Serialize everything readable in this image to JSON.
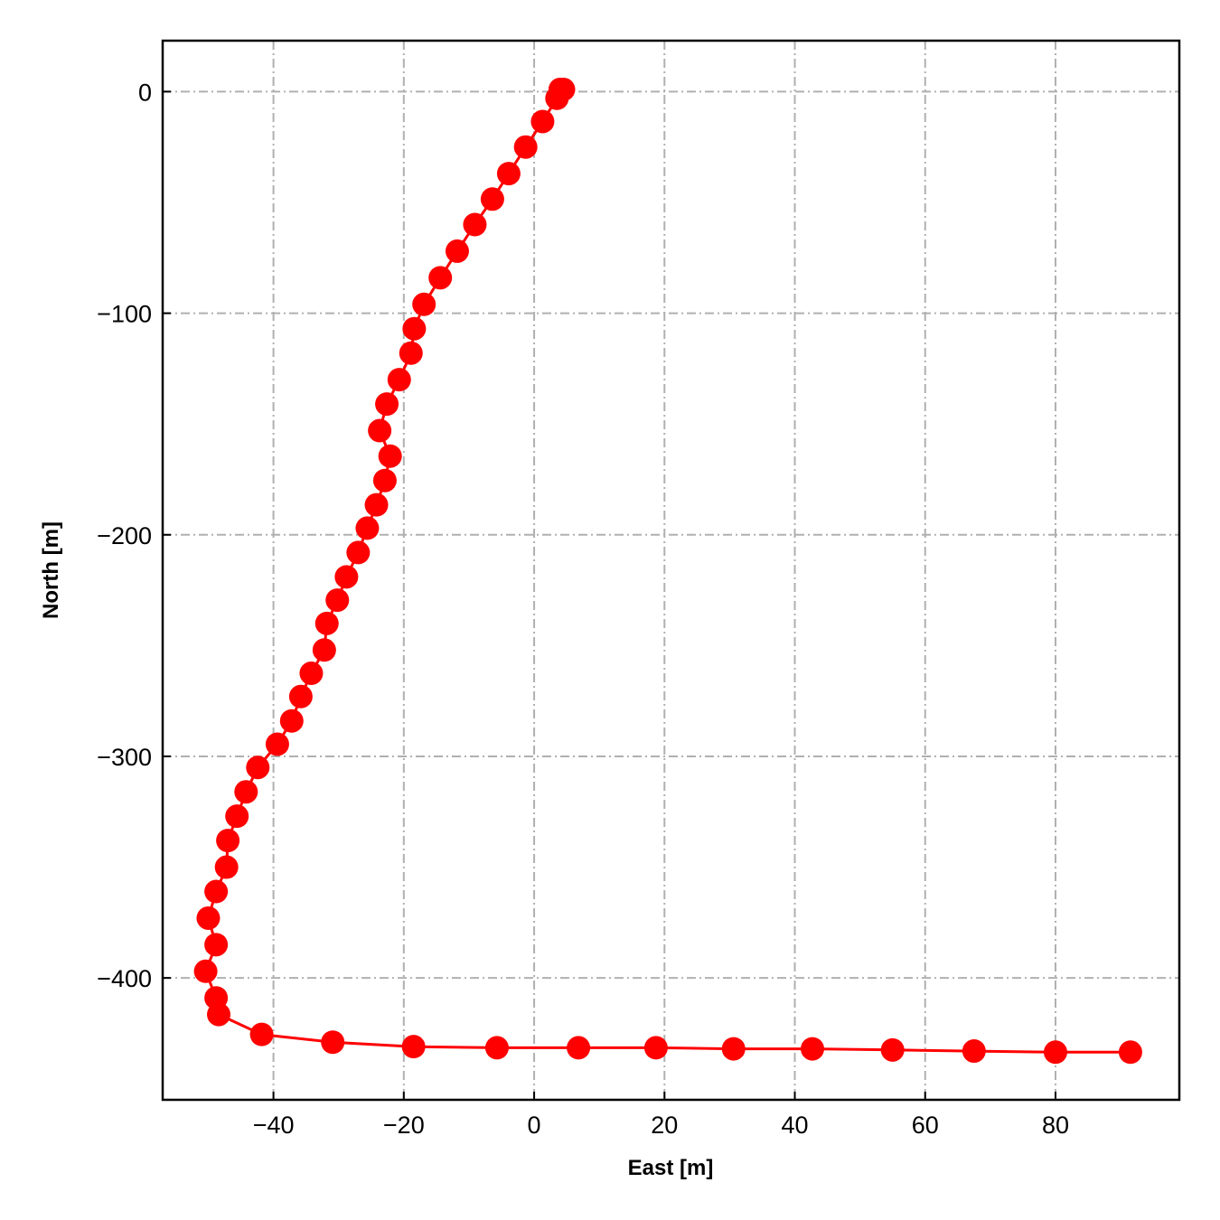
{
  "chart_data": {
    "type": "line",
    "xlabel": "East [m]",
    "ylabel": "North [m]",
    "xlim": [
      -57,
      99
    ],
    "ylim": [
      -455,
      23
    ],
    "x_ticks": [
      -40,
      -20,
      0,
      20,
      40,
      60,
      80
    ],
    "y_ticks": [
      0,
      -100,
      -200,
      -300,
      -400
    ],
    "x_tick_labels": [
      "−40",
      "−20",
      "0",
      "20",
      "40",
      "60",
      "80"
    ],
    "y_tick_labels": [
      "0",
      "−100",
      "−200",
      "−300",
      "−400"
    ],
    "grid": true,
    "grid_style": "dash-dot",
    "series": [
      {
        "color": "#ff0000",
        "marker": "circle",
        "x": [
          4.5,
          4.0,
          3.5,
          1.3,
          -1.3,
          -3.9,
          -6.4,
          -9.1,
          -11.8,
          -14.4,
          -16.9,
          -18.4,
          -18.9,
          -20.7,
          -22.6,
          -23.7,
          -22.1,
          -22.9,
          -24.2,
          -25.6,
          -27.0,
          -28.8,
          -30.2,
          -31.8,
          -32.2,
          -34.2,
          -35.8,
          -37.2,
          -39.4,
          -42.4,
          -44.2,
          -45.6,
          -47.0,
          -47.2,
          -48.8,
          -50.0,
          -48.8,
          -50.4,
          -48.8,
          -48.4,
          -41.8,
          -30.9,
          -18.5,
          -5.7,
          6.8,
          18.7,
          30.6,
          42.7,
          55.0,
          67.5,
          80.0,
          91.5
        ],
        "y": [
          1,
          1,
          -3,
          -13.5,
          -25,
          -37,
          -48.5,
          -60,
          -72,
          -84,
          -96,
          -107,
          -118,
          -130,
          -141,
          -153,
          -164.5,
          -175.5,
          -186.5,
          -197,
          -208,
          -219,
          -229.5,
          -240,
          -252,
          -262.5,
          -273,
          -284,
          -294.5,
          -305,
          -316,
          -327,
          -338,
          -350,
          -361,
          -373,
          -385,
          -397,
          -409,
          -416.5,
          -425.5,
          -429,
          -431,
          -431.5,
          -431.5,
          -431.5,
          -432,
          -432,
          -432.5,
          -433,
          -433.5,
          -433.5
        ]
      }
    ]
  }
}
